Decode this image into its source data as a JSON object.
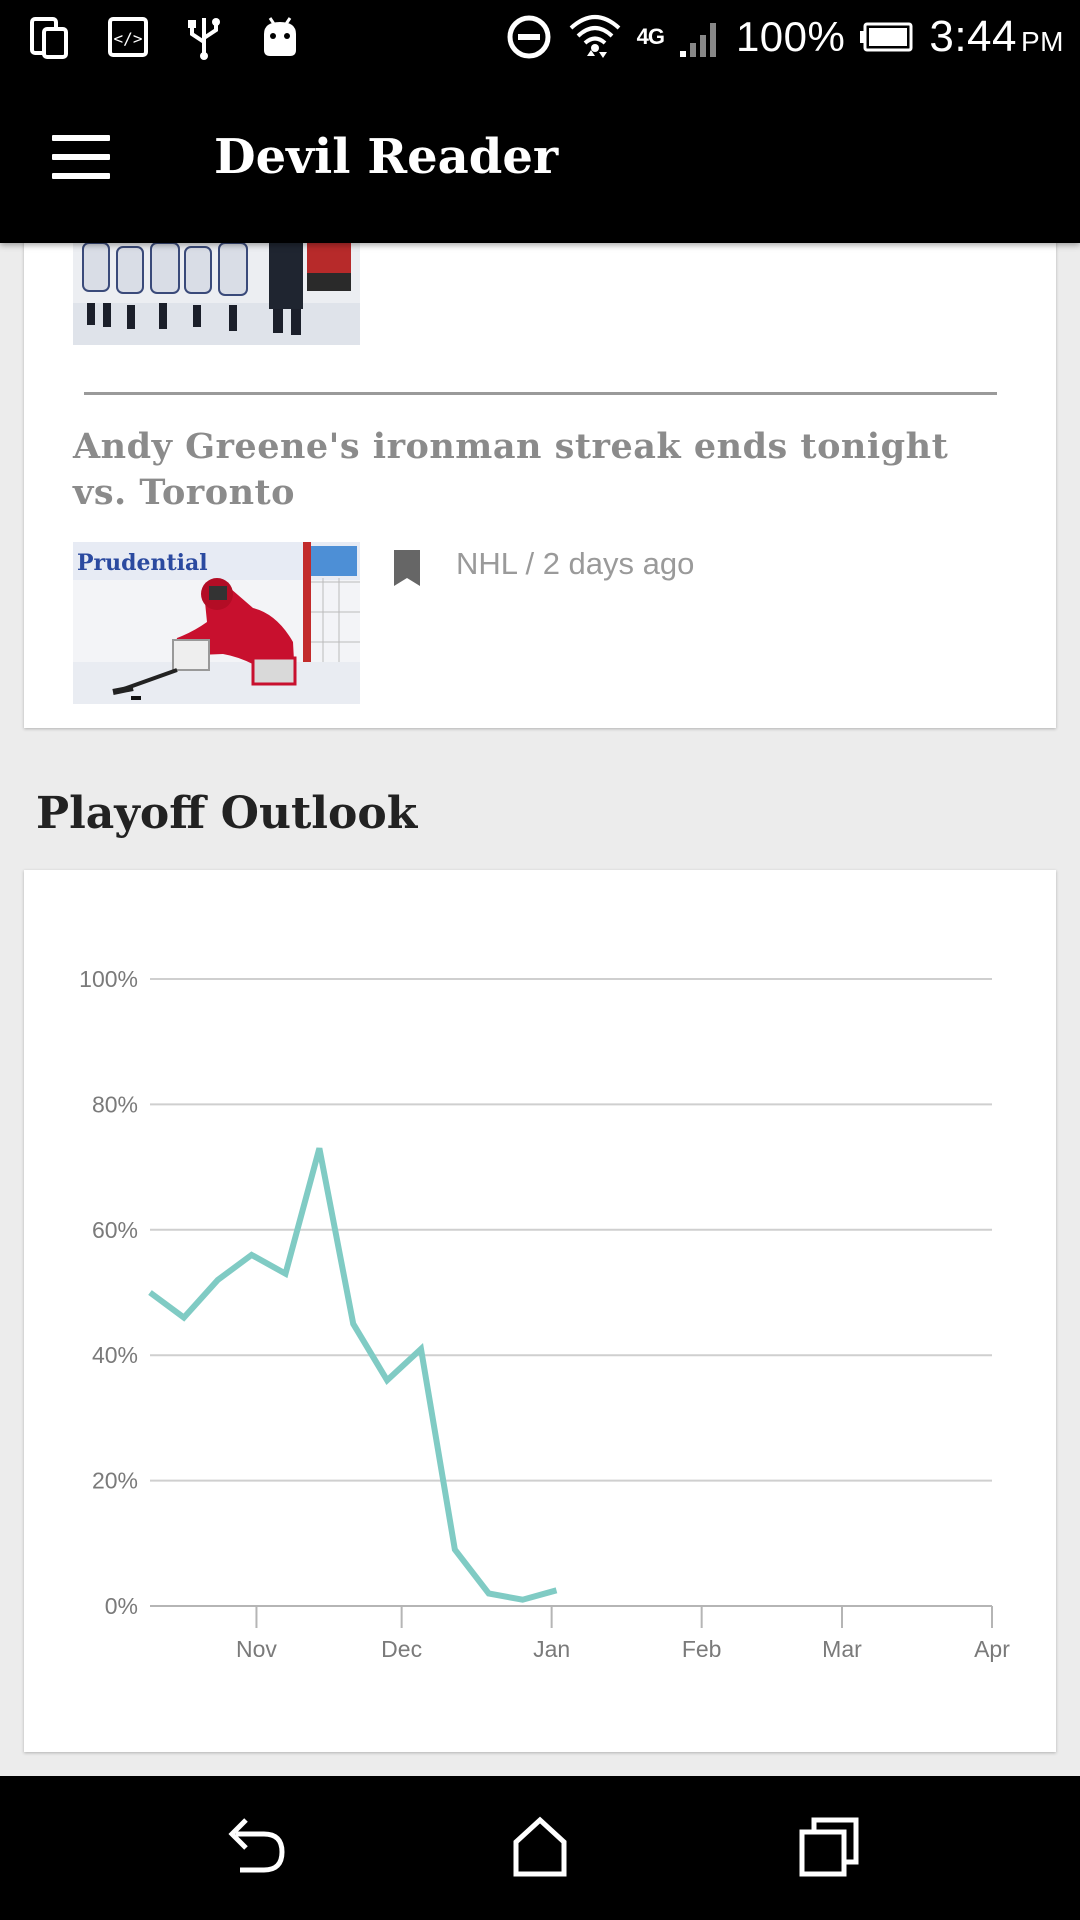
{
  "status_bar": {
    "icons_left": [
      "phone-tablet-icon",
      "developer-code-icon",
      "usb-icon",
      "android-debug-icon"
    ],
    "icons_right": [
      "do-not-disturb-icon",
      "wifi-icon",
      "signal-icon",
      "battery-icon"
    ],
    "network": "4G",
    "battery": "100%",
    "time": "3:44",
    "ampm": "PM"
  },
  "app_bar": {
    "menu_icon": "hamburger-menu-icon",
    "title": "Devil Reader"
  },
  "articles": [
    {
      "headline": "Andy Greene's ironman streak ends tonight vs. Toronto",
      "bookmark_icon": "bookmark-icon",
      "meta": "NHL / 2 days ago",
      "thumbnail_text": "Prudential"
    }
  ],
  "section": {
    "title": "Playoff Outlook"
  },
  "chart_data": {
    "type": "line",
    "title": "",
    "xlabel": "",
    "ylabel": "",
    "x": [
      "2015-10-10",
      "2015-10-17",
      "2015-10-24",
      "2015-10-31",
      "2015-11-07",
      "2015-11-14",
      "2015-11-21",
      "2015-11-28",
      "2015-12-05",
      "2015-12-12",
      "2015-12-19",
      "2015-12-26",
      "2016-01-02"
    ],
    "series": [
      {
        "values": [
          50,
          46,
          52,
          56,
          53,
          73,
          45,
          36,
          41,
          9,
          2,
          1,
          2.5
        ],
        "color": "#80cbc4"
      }
    ],
    "x_tick_labels": [
      "Nov",
      "Dec",
      "Jan",
      "Feb",
      "Mar",
      "Apr"
    ],
    "y_tick_labels": [
      "0%",
      "20%",
      "40%",
      "60%",
      "80%",
      "100%"
    ],
    "ylim": [
      0,
      100
    ],
    "xlim": [
      "2015-10-10",
      "2016-04-01"
    ],
    "grid": true,
    "legend": "none"
  },
  "nav_bar": {
    "icons": [
      "back-icon",
      "home-icon",
      "recents-icon"
    ]
  }
}
